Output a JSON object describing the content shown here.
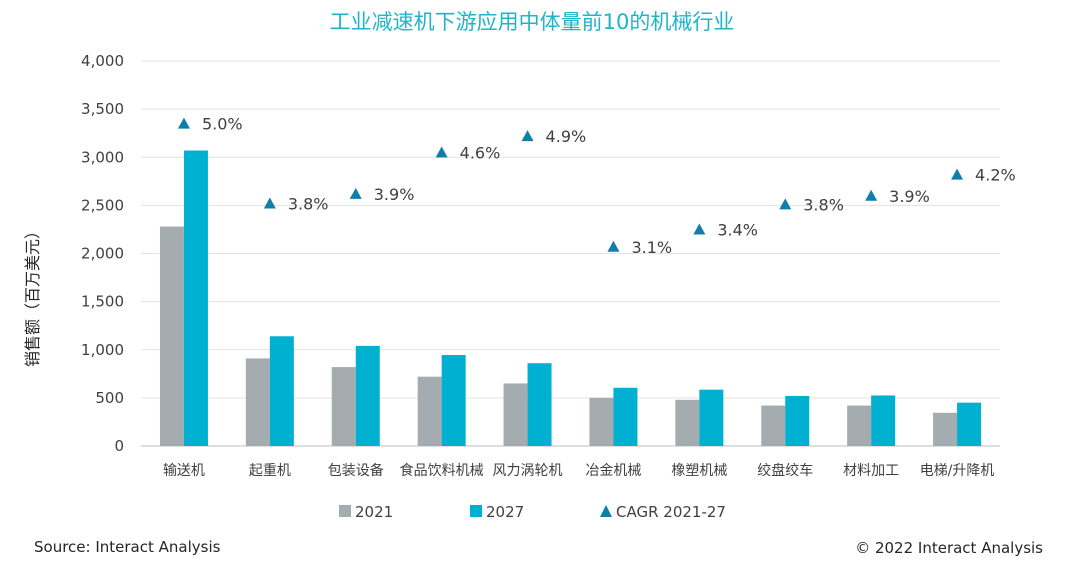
{
  "chart_data": {
    "type": "bar",
    "title": "工业减速机下游应用中体量前10的机械行业",
    "ylabel": "销售额（百万美元）",
    "xlabel": "",
    "ylim": [
      0,
      4000
    ],
    "yticks": [
      0,
      500,
      1000,
      1500,
      2000,
      2500,
      3000,
      3500,
      4000
    ],
    "ytick_labels": [
      "0",
      "500",
      "1,000",
      "1,500",
      "2,000",
      "2,500",
      "3,000",
      "3,500",
      "4,000"
    ],
    "grid": true,
    "legend_position": "bottom",
    "categories": [
      "输送机",
      "起重机",
      "包装设备",
      "食品饮料机械",
      "风力涡轮机",
      "冶金机械",
      "橡塑机械",
      "绞盘绞车",
      "材料加工",
      "电梯/升降机"
    ],
    "series": [
      {
        "name": "2021",
        "type": "bar",
        "color": "#a5acaf",
        "values": [
          2280,
          910,
          820,
          720,
          650,
          500,
          480,
          420,
          420,
          345
        ]
      },
      {
        "name": "2027",
        "type": "bar",
        "color": "#00b0d0",
        "values": [
          3070,
          1140,
          1040,
          945,
          860,
          605,
          585,
          520,
          525,
          450
        ]
      },
      {
        "name": "CAGR 2021-27",
        "type": "marker",
        "color": "#0f7ea8",
        "values": [
          3350,
          2520,
          2620,
          3050,
          3220,
          2070,
          2250,
          2510,
          2600,
          2820
        ],
        "labels": [
          "5.0%",
          "3.8%",
          "3.9%",
          "4.6%",
          "4.9%",
          "3.1%",
          "3.4%",
          "3.8%",
          "3.9%",
          "4.2%"
        ]
      }
    ]
  },
  "footer": {
    "source": "Source: Interact Analysis",
    "copyright": "© 2022 Interact Analysis"
  }
}
